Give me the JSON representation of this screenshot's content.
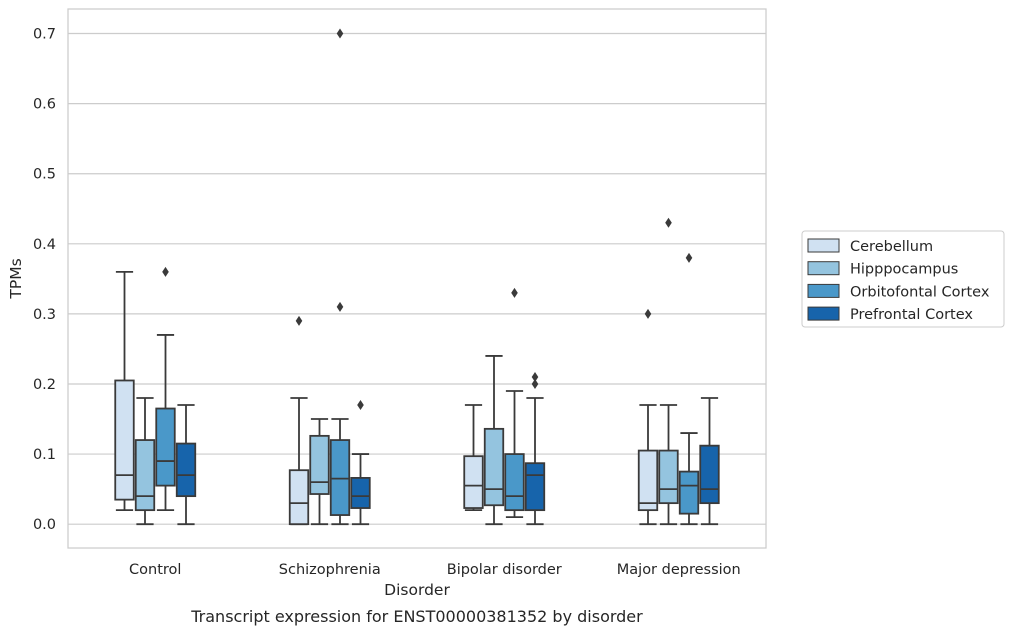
{
  "chart_data": {
    "type": "box",
    "title": "",
    "caption": "Transcript expression for ENST00000381352 by disorder",
    "xlabel": "Disorder",
    "ylabel": "TPMs",
    "ylim": [
      -0.034,
      0.735
    ],
    "yticks": [
      0.0,
      0.1,
      0.2,
      0.3,
      0.4,
      0.5,
      0.6,
      0.7
    ],
    "ytick_labels": [
      "0.0",
      "0.1",
      "0.2",
      "0.3",
      "0.4",
      "0.5",
      "0.6",
      "0.7"
    ],
    "grid": "horizontal",
    "legend_position": "right",
    "categories": [
      "Control",
      "Schizophrenia",
      "Bipolar disorder",
      "Major depression"
    ],
    "series": [
      {
        "name": "Cerebellum",
        "color": "#d0e1f2",
        "boxes": [
          {
            "whisker_low": 0.02,
            "q1": 0.035,
            "median": 0.07,
            "q3": 0.205,
            "whisker_high": 0.36,
            "outliers": []
          },
          {
            "whisker_low": 0.0,
            "q1": 0.0,
            "median": 0.03,
            "q3": 0.077,
            "whisker_high": 0.18,
            "outliers": [
              0.29
            ]
          },
          {
            "whisker_low": 0.02,
            "q1": 0.023,
            "median": 0.055,
            "q3": 0.097,
            "whisker_high": 0.17,
            "outliers": []
          },
          {
            "whisker_low": 0.0,
            "q1": 0.02,
            "median": 0.03,
            "q3": 0.105,
            "whisker_high": 0.17,
            "outliers": [
              0.3
            ]
          }
        ]
      },
      {
        "name": "Hipppocampus",
        "color": "#94c4df",
        "boxes": [
          {
            "whisker_low": 0.0,
            "q1": 0.02,
            "median": 0.04,
            "q3": 0.12,
            "whisker_high": 0.18,
            "outliers": []
          },
          {
            "whisker_low": 0.0,
            "q1": 0.043,
            "median": 0.06,
            "q3": 0.126,
            "whisker_high": 0.15,
            "outliers": []
          },
          {
            "whisker_low": 0.0,
            "q1": 0.027,
            "median": 0.05,
            "q3": 0.136,
            "whisker_high": 0.24,
            "outliers": []
          },
          {
            "whisker_low": 0.0,
            "q1": 0.03,
            "median": 0.05,
            "q3": 0.105,
            "whisker_high": 0.17,
            "outliers": [
              0.43
            ]
          }
        ]
      },
      {
        "name": "Orbitofontal Cortex",
        "color": "#4a98c9",
        "boxes": [
          {
            "whisker_low": 0.02,
            "q1": 0.055,
            "median": 0.09,
            "q3": 0.165,
            "whisker_high": 0.27,
            "outliers": [
              0.36
            ]
          },
          {
            "whisker_low": 0.0,
            "q1": 0.013,
            "median": 0.065,
            "q3": 0.12,
            "whisker_high": 0.15,
            "outliers": [
              0.31,
              0.7
            ]
          },
          {
            "whisker_low": 0.01,
            "q1": 0.02,
            "median": 0.04,
            "q3": 0.1,
            "whisker_high": 0.19,
            "outliers": [
              0.33
            ]
          },
          {
            "whisker_low": 0.0,
            "q1": 0.015,
            "median": 0.055,
            "q3": 0.075,
            "whisker_high": 0.13,
            "outliers": [
              0.38
            ]
          }
        ]
      },
      {
        "name": "Prefrontal Cortex",
        "color": "#1764ab",
        "boxes": [
          {
            "whisker_low": 0.0,
            "q1": 0.04,
            "median": 0.07,
            "q3": 0.115,
            "whisker_high": 0.17,
            "outliers": []
          },
          {
            "whisker_low": 0.0,
            "q1": 0.023,
            "median": 0.04,
            "q3": 0.066,
            "whisker_high": 0.1,
            "outliers": [
              0.17
            ]
          },
          {
            "whisker_low": 0.0,
            "q1": 0.02,
            "median": 0.07,
            "q3": 0.087,
            "whisker_high": 0.18,
            "outliers": [
              0.2,
              0.21
            ]
          },
          {
            "whisker_low": 0.0,
            "q1": 0.03,
            "median": 0.05,
            "q3": 0.112,
            "whisker_high": 0.18,
            "outliers": []
          }
        ]
      }
    ]
  }
}
